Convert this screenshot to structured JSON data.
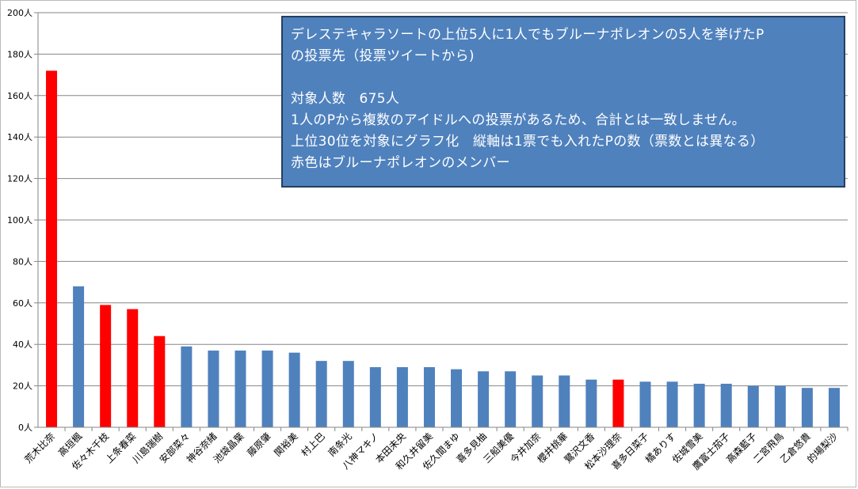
{
  "chart_data": {
    "type": "bar",
    "title": "",
    "xlabel": "",
    "ylabel": "",
    "ylim": [
      0,
      200
    ],
    "ytick_step": 20,
    "ytick_suffix": "人",
    "grid": true,
    "legend": "none",
    "colors": {
      "normal": "#4f81bd",
      "highlight": "#ff0000"
    },
    "categories": [
      "荒木比奈",
      "高垣楓",
      "佐々木千枝",
      "上条春菜",
      "川島瑞樹",
      "安部菜々",
      "神谷奈緒",
      "池袋晶葉",
      "藤原肇",
      "関裕美",
      "村上巴",
      "南条光",
      "八神マキノ",
      "本田未央",
      "和久井留美",
      "佐久間まゆ",
      "喜多見柚",
      "三船美優",
      "今井加奈",
      "櫻井桃華",
      "鷺沢文香",
      "松本沙理奈",
      "喜多日菜子",
      "橘ありす",
      "佐城雪美",
      "鷹富士茄子",
      "高森藍子",
      "二宮飛鳥",
      "乙倉悠貴",
      "的場梨沙"
    ],
    "values": [
      172,
      68,
      59,
      57,
      44,
      39,
      37,
      37,
      37,
      36,
      32,
      32,
      29,
      29,
      29,
      28,
      27,
      27,
      25,
      25,
      23,
      23,
      22,
      22,
      21,
      21,
      20,
      20,
      19,
      19
    ],
    "highlight": [
      true,
      false,
      true,
      true,
      true,
      false,
      false,
      false,
      false,
      false,
      false,
      false,
      false,
      false,
      false,
      false,
      false,
      false,
      false,
      false,
      false,
      true,
      false,
      false,
      false,
      false,
      false,
      false,
      false,
      false
    ]
  },
  "info_box": {
    "line1": "デレステキャラソートの上位5人に1人でもブルーナポレオンの5人を挙げたP",
    "line2": "の投票先（投票ツイートから)",
    "line3": "対象人数　675人",
    "line4": "1人のPから複数のアイドルへの投票があるため、合計とは一致しません。",
    "line5": "上位30位を対象にグラフ化　縦軸は1票でも入れたPの数（票数とは異なる）",
    "line6": "赤色はブルーナポレオンのメンバー"
  }
}
